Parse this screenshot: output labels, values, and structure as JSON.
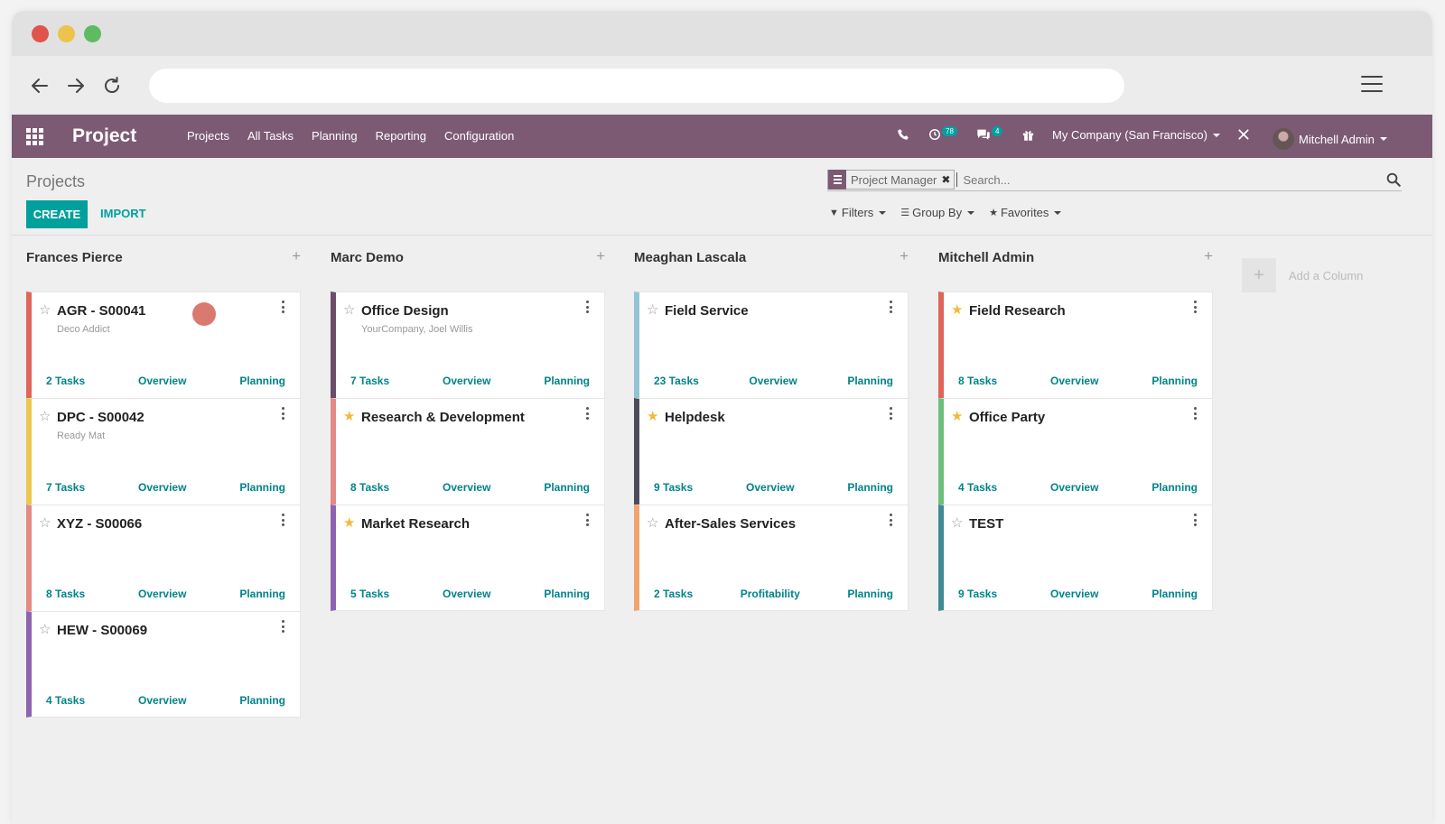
{
  "browser": {
    "url": ""
  },
  "app": {
    "title": "Project",
    "menu": [
      "Projects",
      "All Tasks",
      "Planning",
      "Reporting",
      "Configuration"
    ],
    "activity_count": "78",
    "message_count": "4",
    "company": "My Company (San Francisco)",
    "user": "Mitchell Admin"
  },
  "control_panel": {
    "breadcrumb": "Projects",
    "create_label": "CREATE",
    "import_label": "IMPORT",
    "search": {
      "facet": "Project Manager",
      "placeholder": "Search..."
    },
    "filters_label": "Filters",
    "groupby_label": "Group By",
    "favorites_label": "Favorites"
  },
  "columns": [
    {
      "title": "Frances Pierce",
      "cards": [
        {
          "name": "AGR - S00041",
          "subtitle": "Deco Addict",
          "favorite": false,
          "color": "#e0655a",
          "tasks": "2 Tasks",
          "link2": "Overview",
          "link3": "Planning"
        },
        {
          "name": "DPC - S00042",
          "subtitle": "Ready Mat",
          "favorite": false,
          "color": "#ecc84e",
          "tasks": "7 Tasks",
          "link2": "Overview",
          "link3": "Planning"
        },
        {
          "name": "XYZ - S00066",
          "subtitle": "",
          "favorite": false,
          "color": "#e38a85",
          "tasks": "8 Tasks",
          "link2": "Overview",
          "link3": "Planning"
        },
        {
          "name": "HEW - S00069",
          "subtitle": "",
          "favorite": false,
          "color": "#8e63b0",
          "tasks": "4 Tasks",
          "link2": "Overview",
          "link3": "Planning"
        }
      ]
    },
    {
      "title": "Marc Demo",
      "cards": [
        {
          "name": "Office Design",
          "subtitle": "YourCompany, Joel Willis",
          "favorite": false,
          "color": "#6b4e68",
          "tasks": "7 Tasks",
          "link2": "Overview",
          "link3": "Planning"
        },
        {
          "name": "Research & Development",
          "subtitle": "",
          "favorite": true,
          "color": "#e38a85",
          "tasks": "8 Tasks",
          "link2": "Overview",
          "link3": "Planning"
        },
        {
          "name": "Market Research",
          "subtitle": "",
          "favorite": true,
          "color": "#8e63b0",
          "tasks": "5 Tasks",
          "link2": "Overview",
          "link3": "Planning"
        }
      ]
    },
    {
      "title": "Meaghan Lascala",
      "cards": [
        {
          "name": "Field Service",
          "subtitle": "",
          "favorite": false,
          "color": "#93c4d3",
          "tasks": "23 Tasks",
          "link2": "Overview",
          "link3": "Planning"
        },
        {
          "name": "Helpdesk",
          "subtitle": "",
          "favorite": true,
          "color": "#4b4b5c",
          "tasks": "9 Tasks",
          "link2": "Overview",
          "link3": "Planning"
        },
        {
          "name": "After-Sales Services",
          "subtitle": "",
          "favorite": false,
          "color": "#f0a470",
          "tasks": "2 Tasks",
          "link2": "Profitability",
          "link3": "Planning"
        }
      ]
    },
    {
      "title": "Mitchell Admin",
      "cards": [
        {
          "name": "Field Research",
          "subtitle": "",
          "favorite": true,
          "color": "#e0655a",
          "tasks": "8 Tasks",
          "link2": "Overview",
          "link3": "Planning"
        },
        {
          "name": "Office Party",
          "subtitle": "",
          "favorite": true,
          "color": "#6cc07a",
          "tasks": "4 Tasks",
          "link2": "Overview",
          "link3": "Planning"
        },
        {
          "name": "TEST",
          "subtitle": "",
          "favorite": false,
          "color": "#3f8a93",
          "tasks": "9 Tasks",
          "link2": "Overview",
          "link3": "Planning"
        }
      ]
    }
  ],
  "add_column_label": "Add a Column"
}
